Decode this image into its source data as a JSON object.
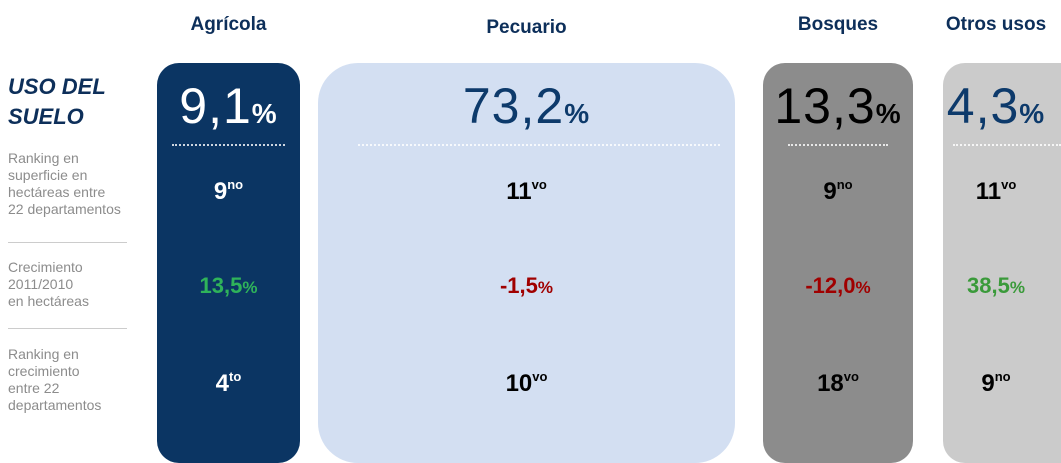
{
  "title": [
    "USO DEL",
    "SUELO"
  ],
  "row_labels": [
    [
      "Ranking en",
      "superficie en",
      "hectáreas entre",
      "22 departamentos"
    ],
    [
      "Crecimiento",
      "2011/2010",
      "en hectáreas"
    ],
    [
      "Ranking en",
      "crecimiento",
      "entre 22",
      "departamentos"
    ]
  ],
  "columns": [
    {
      "header": "Agrícola",
      "share": {
        "number": "9,1",
        "unit": "%"
      },
      "rank": {
        "number": "9",
        "suffix": "no"
      },
      "growth": {
        "number": "13,5",
        "unit": "%"
      },
      "growth_rank": {
        "number": "4",
        "suffix": "to"
      }
    },
    {
      "header": "Pecuario",
      "share": {
        "number": "73,2",
        "unit": "%"
      },
      "rank": {
        "number": "11",
        "suffix": "vo"
      },
      "growth": {
        "number": "-1,5",
        "unit": "%"
      },
      "growth_rank": {
        "number": "10",
        "suffix": "vo"
      }
    },
    {
      "header": "Bosques",
      "share": {
        "number": "13,3",
        "unit": "%"
      },
      "rank": {
        "number": "9",
        "suffix": "no"
      },
      "growth": {
        "number": "-12,0",
        "unit": "%"
      },
      "growth_rank": {
        "number": "18",
        "suffix": "vo"
      }
    },
    {
      "header": "Otros usos",
      "share": {
        "number": "4,3",
        "unit": "%"
      },
      "rank": {
        "number": "11",
        "suffix": "vo"
      },
      "growth": {
        "number": "38,5",
        "unit": "%"
      },
      "growth_rank": {
        "number": "9",
        "suffix": "no"
      }
    }
  ]
}
